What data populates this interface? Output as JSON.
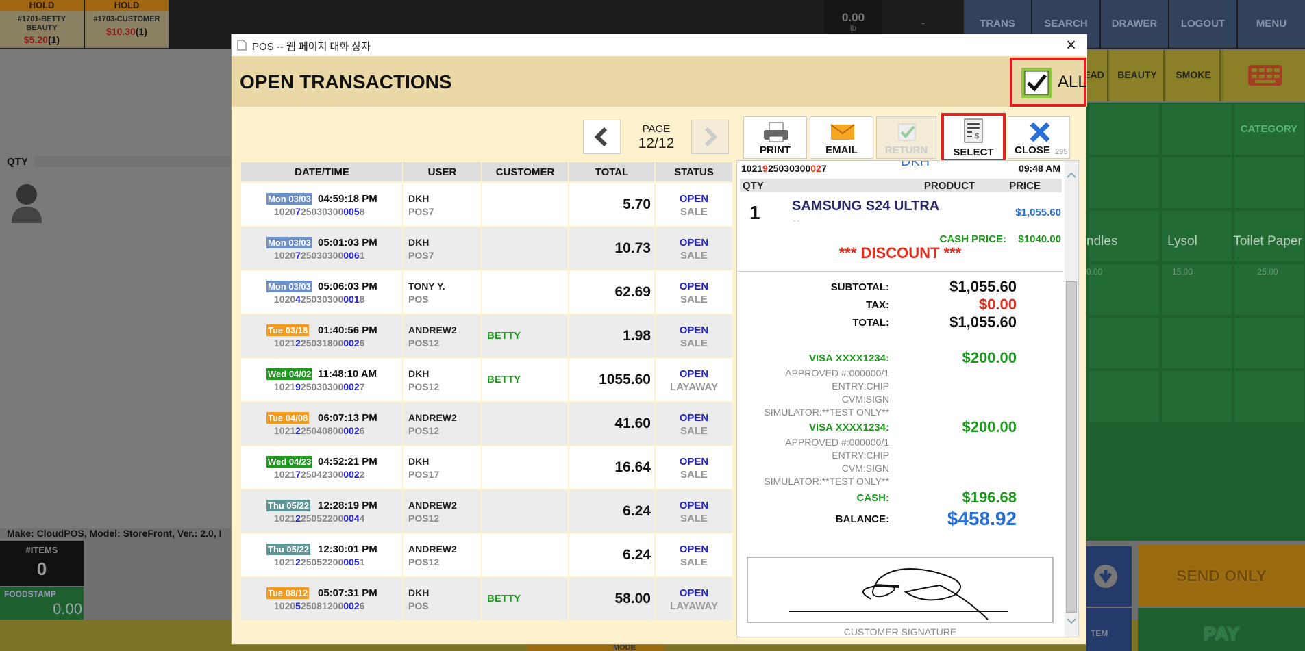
{
  "background": {
    "holds": [
      {
        "label": "HOLD",
        "name": "#1701-BETTY BEAUTY",
        "amount": "$5.20",
        "count": "(1)"
      },
      {
        "label": "HOLD",
        "name": "#1703-CUSTOMER",
        "amount": "$10.30",
        "count": "(1)"
      }
    ],
    "scale": {
      "weight": "0.00",
      "unit": "lb"
    },
    "dash": "-",
    "menu": [
      "TRANS",
      "SEARCH",
      "DRAWER",
      "LOGOUT",
      "MENU"
    ],
    "categories": [
      "BREAD",
      "BEAUTY",
      "SMOKE"
    ],
    "category_label": "CATEGORY",
    "products": [
      {
        "name": "ndles",
        "price": "0.00"
      },
      {
        "name": "Lysol",
        "price": "15.00"
      },
      {
        "name": "Toilet Paper",
        "price": "25.00"
      }
    ],
    "qty_label": "QTY",
    "footer_info": "Make: CloudPOS, Model: StoreFront, Ver.: 2.0, I",
    "items_label": "#ITEMS",
    "items_count": "0",
    "foodstamp_label": "FOODSTAMP",
    "foodstamp_value": "0.00",
    "send_only": "SEND ONLY",
    "pay": "PAY",
    "tem": "TEM",
    "mode": "MODE"
  },
  "dialog": {
    "window_title": "POS -- 웹 페이지 대화 상자",
    "close": "×",
    "title": "OPEN TRANSACTIONS",
    "all": "ALL",
    "page_label": "PAGE",
    "page": "12/12",
    "buttons": {
      "print": "PRINT",
      "email": "EMAIL",
      "return": "RETURN",
      "select": "SELECT",
      "close": "CLOSE",
      "close_count": "295"
    },
    "table": {
      "headers": [
        "DATE/TIME",
        "USER",
        "CUSTOMER",
        "TOTAL",
        "STATUS"
      ],
      "rows": [
        {
          "day": "Mon 03/03",
          "tag_color": "#6b8fc6",
          "time": "04:59:18 PM",
          "id": [
            "1020",
            "7",
            "25030300",
            "005",
            "8"
          ],
          "user": "DKH",
          "register": "POS7",
          "customer": "",
          "total": "5.70",
          "status": "OPEN",
          "kind": "SALE"
        },
        {
          "day": "Mon 03/03",
          "tag_color": "#6b8fc6",
          "time": "05:01:03 PM",
          "id": [
            "1020",
            "7",
            "25030300",
            "006",
            "1"
          ],
          "user": "DKH",
          "register": "POS7",
          "customer": "",
          "total": "10.73",
          "status": "OPEN",
          "kind": "SALE"
        },
        {
          "day": "Mon 03/03",
          "tag_color": "#6b8fc6",
          "time": "05:06:03 PM",
          "id": [
            "1020",
            "4",
            "25030300",
            "001",
            "8"
          ],
          "user": "TONY Y.",
          "register": "POS",
          "customer": "",
          "total": "62.69",
          "status": "OPEN",
          "kind": "SALE"
        },
        {
          "day": "Tue 03/18",
          "tag_color": "#f29a1e",
          "time": "01:40:56 PM",
          "id": [
            "1021",
            "2",
            "25031800",
            "002",
            "6"
          ],
          "user": "ANDREW2",
          "register": "POS12",
          "customer": "BETTY",
          "total": "1.98",
          "status": "OPEN",
          "kind": "SALE"
        },
        {
          "day": "Wed 04/02",
          "tag_color": "#1e9a1e",
          "time": "11:48:10 AM",
          "id": [
            "1021",
            "9",
            "25030300",
            "002",
            "7"
          ],
          "user": "DKH",
          "register": "POS12",
          "customer": "BETTY",
          "total": "1055.60",
          "status": "OPEN",
          "kind": "LAYAWAY"
        },
        {
          "day": "Tue 04/08",
          "tag_color": "#f29a1e",
          "time": "06:07:13 PM",
          "id": [
            "1021",
            "2",
            "25040800",
            "002",
            "6"
          ],
          "user": "ANDREW2",
          "register": "POS12",
          "customer": "",
          "total": "41.60",
          "status": "OPEN",
          "kind": "SALE"
        },
        {
          "day": "Wed 04/23",
          "tag_color": "#1e9a1e",
          "time": "04:52:21 PM",
          "id": [
            "1021",
            "7",
            "25042300",
            "002",
            "2"
          ],
          "user": "DKH",
          "register": "POS17",
          "customer": "",
          "total": "16.64",
          "status": "OPEN",
          "kind": "SALE"
        },
        {
          "day": "Thu 05/22",
          "tag_color": "#5f9595",
          "time": "12:28:19 PM",
          "id": [
            "1021",
            "2",
            "25052200",
            "004",
            "4"
          ],
          "user": "ANDREW2",
          "register": "POS12",
          "customer": "",
          "total": "6.24",
          "status": "OPEN",
          "kind": "SALE"
        },
        {
          "day": "Thu 05/22",
          "tag_color": "#5f9595",
          "time": "12:30:01 PM",
          "id": [
            "1021",
            "2",
            "25052200",
            "005",
            "1"
          ],
          "user": "ANDREW2",
          "register": "POS12",
          "customer": "",
          "total": "6.24",
          "status": "OPEN",
          "kind": "SALE"
        },
        {
          "day": "Tue 08/12",
          "tag_color": "#f29a1e",
          "time": "05:07:31 PM",
          "id": [
            "1020",
            "5",
            "25081200",
            "002",
            "6"
          ],
          "user": "DKH",
          "register": "POS",
          "customer": "BETTY",
          "total": "58.00",
          "status": "OPEN",
          "kind": "LAYAWAY"
        }
      ]
    },
    "receipt": {
      "id": [
        "1021",
        "9",
        "25030300",
        "02",
        "7"
      ],
      "time": "09:48 AM",
      "user": "DKH",
      "headers": [
        "QTY",
        "PRODUCT",
        "PRICE"
      ],
      "qty": "1",
      "product": "SAMSUNG S24 ULTRA",
      "price": "$1,055.60",
      "sub": "- -",
      "cash_price_label": "CASH PRICE:",
      "cash_price": "$1040.00",
      "discount": "*** DISCOUNT ***",
      "subtotal_label": "SUBTOTAL:",
      "subtotal": "$1,055.60",
      "tax_label": "TAX:",
      "tax": "$0.00",
      "total_label": "TOTAL:",
      "total": "$1,055.60",
      "payments": [
        {
          "card": "VISA XXXX1234:",
          "amount": "$200.00",
          "approved": "APPROVED #:000000/1",
          "entry": "ENTRY:CHIP",
          "cvm": "CVM:SIGN",
          "sim": "SIMULATOR:**TEST ONLY**"
        },
        {
          "card": "VISA XXXX1234:",
          "amount": "$200.00",
          "approved": "APPROVED #:000000/1",
          "entry": "ENTRY:CHIP",
          "cvm": "CVM:SIGN",
          "sim": "SIMULATOR:**TEST ONLY**"
        }
      ],
      "cash_label": "CASH:",
      "cash": "$196.68",
      "balance_label": "BALANCE:",
      "balance": "$458.92",
      "signature_label": "CUSTOMER SIGNATURE"
    }
  }
}
